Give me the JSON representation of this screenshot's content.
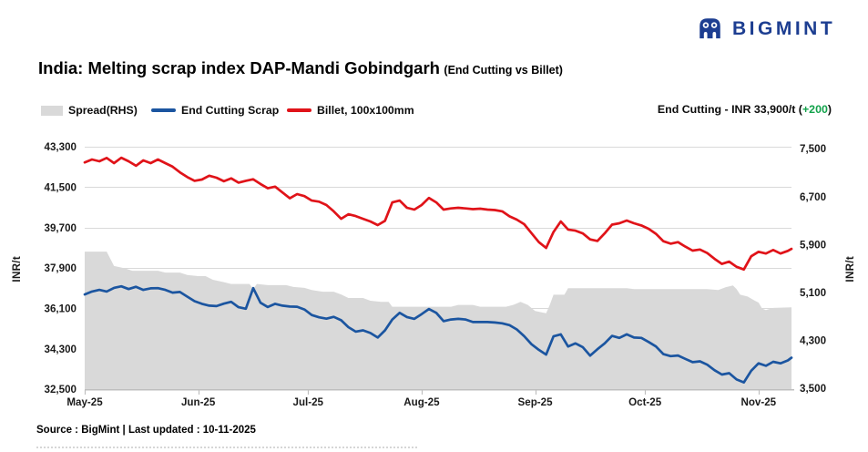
{
  "brand": {
    "name": "BIGMINT",
    "color": "#1d3e91"
  },
  "title": {
    "main": "India: Melting scrap index DAP-Mandi Gobindgarh",
    "sub": "(End Cutting vs Billet)"
  },
  "legend": [
    {
      "label": "Spread(RHS)",
      "swatch": "area",
      "color": "#d9d9d9"
    },
    {
      "label": "End Cutting Scrap",
      "swatch": "line",
      "color": "#1b55a0"
    },
    {
      "label": "Billet, 100x100mm",
      "swatch": "line",
      "color": "#e01319"
    }
  ],
  "callout": {
    "label": "End Cutting - INR 33,900/t ",
    "open": "(",
    "change": "+200",
    "close": ")",
    "change_color": "#12a24b"
  },
  "footer": {
    "source": "Source : BigMint | Last updated : 10-11-2025"
  },
  "chart_data": {
    "type": "line",
    "title": "India: Melting scrap index DAP-Mandi Gobindgarh (End Cutting vs Billet)",
    "ylabel_left": "INR/t",
    "ylabel_right": "INR/t",
    "x_unit": "days since 01-05-2025",
    "grid": "horizontal",
    "legend_position": "top-left",
    "ylim_left": [
      32500,
      43300
    ],
    "ylim_right": [
      3500,
      7500
    ],
    "x_ticks": [
      {
        "label": "May-25",
        "day": 0
      },
      {
        "label": "Jun-25",
        "day": 31
      },
      {
        "label": "Jul-25",
        "day": 61
      },
      {
        "label": "Aug-25",
        "day": 92
      },
      {
        "label": "Sep-25",
        "day": 123
      },
      {
        "label": "Oct-25",
        "day": 153
      },
      {
        "label": "Nov-25",
        "day": 184
      }
    ],
    "y_left_ticks": [
      {
        "label": "43,300",
        "value": 43300
      },
      {
        "label": "41,500",
        "value": 41500
      },
      {
        "label": "39,700",
        "value": 39700
      },
      {
        "label": "37,900",
        "value": 37900
      },
      {
        "label": "36,100",
        "value": 36100
      },
      {
        "label": "34,300",
        "value": 34300
      },
      {
        "label": "32,500",
        "value": 32500
      }
    ],
    "y_right_ticks": [
      {
        "label": "7,500",
        "value": 7500
      },
      {
        "label": "6,700",
        "value": 6700
      },
      {
        "label": "5,900",
        "value": 5900
      },
      {
        "label": "5,100",
        "value": 5100
      },
      {
        "label": "4,300",
        "value": 4300
      },
      {
        "label": "3,500",
        "value": 3500
      }
    ],
    "series": [
      {
        "name": "Spread(RHS)",
        "type": "area",
        "axis": "right",
        "color": "#d9d9d9",
        "points": [
          [
            0,
            5780
          ],
          [
            6,
            5780
          ],
          [
            8,
            5540
          ],
          [
            11,
            5500
          ],
          [
            13,
            5460
          ],
          [
            20,
            5460
          ],
          [
            22,
            5430
          ],
          [
            26,
            5430
          ],
          [
            28,
            5390
          ],
          [
            31,
            5370
          ],
          [
            33,
            5370
          ],
          [
            35,
            5310
          ],
          [
            38,
            5270
          ],
          [
            40,
            5240
          ],
          [
            45,
            5240
          ],
          [
            46,
            5160
          ],
          [
            47,
            5240
          ],
          [
            50,
            5220
          ],
          [
            55,
            5220
          ],
          [
            57,
            5190
          ],
          [
            60,
            5175
          ],
          [
            62,
            5140
          ],
          [
            65,
            5110
          ],
          [
            68,
            5110
          ],
          [
            70,
            5065
          ],
          [
            72,
            5005
          ],
          [
            76,
            5005
          ],
          [
            78,
            4960
          ],
          [
            81,
            4940
          ],
          [
            83,
            4940
          ],
          [
            84,
            4860
          ],
          [
            100,
            4860
          ],
          [
            102,
            4890
          ],
          [
            106,
            4890
          ],
          [
            108,
            4860
          ],
          [
            115,
            4860
          ],
          [
            117,
            4890
          ],
          [
            119,
            4940
          ],
          [
            121,
            4890
          ],
          [
            123,
            4790
          ],
          [
            126,
            4750
          ],
          [
            127,
            4890
          ],
          [
            128,
            5060
          ],
          [
            131,
            5060
          ],
          [
            132,
            5170
          ],
          [
            148,
            5170
          ],
          [
            150,
            5155
          ],
          [
            170,
            5155
          ],
          [
            173,
            5140
          ],
          [
            175,
            5185
          ],
          [
            177,
            5215
          ],
          [
            178,
            5155
          ],
          [
            179,
            5060
          ],
          [
            181,
            5030
          ],
          [
            183,
            4960
          ],
          [
            184,
            4930
          ],
          [
            185,
            4830
          ],
          [
            186,
            4805
          ],
          [
            188,
            4840
          ],
          [
            193,
            4850
          ]
        ]
      },
      {
        "name": "End Cutting Scrap",
        "type": "line",
        "axis": "left",
        "color": "#1b55a0",
        "points": [
          [
            0,
            36720
          ],
          [
            2,
            36850
          ],
          [
            4,
            36920
          ],
          [
            6,
            36850
          ],
          [
            8,
            37010
          ],
          [
            10,
            37080
          ],
          [
            12,
            36960
          ],
          [
            14,
            37060
          ],
          [
            16,
            36920
          ],
          [
            18,
            36990
          ],
          [
            20,
            37000
          ],
          [
            22,
            36920
          ],
          [
            24,
            36800
          ],
          [
            26,
            36830
          ],
          [
            28,
            36620
          ],
          [
            30,
            36420
          ],
          [
            32,
            36300
          ],
          [
            34,
            36220
          ],
          [
            36,
            36200
          ],
          [
            38,
            36310
          ],
          [
            40,
            36390
          ],
          [
            42,
            36150
          ],
          [
            44,
            36080
          ],
          [
            46,
            37000
          ],
          [
            48,
            36350
          ],
          [
            50,
            36160
          ],
          [
            52,
            36300
          ],
          [
            54,
            36220
          ],
          [
            56,
            36180
          ],
          [
            58,
            36170
          ],
          [
            60,
            36050
          ],
          [
            62,
            35800
          ],
          [
            64,
            35700
          ],
          [
            66,
            35640
          ],
          [
            68,
            35720
          ],
          [
            70,
            35570
          ],
          [
            72,
            35260
          ],
          [
            74,
            35060
          ],
          [
            76,
            35120
          ],
          [
            78,
            35000
          ],
          [
            80,
            34800
          ],
          [
            82,
            35120
          ],
          [
            84,
            35600
          ],
          [
            86,
            35900
          ],
          [
            88,
            35710
          ],
          [
            90,
            35630
          ],
          [
            92,
            35840
          ],
          [
            94,
            36070
          ],
          [
            96,
            35900
          ],
          [
            98,
            35530
          ],
          [
            100,
            35600
          ],
          [
            102,
            35630
          ],
          [
            104,
            35600
          ],
          [
            106,
            35490
          ],
          [
            108,
            35490
          ],
          [
            110,
            35490
          ],
          [
            112,
            35470
          ],
          [
            114,
            35430
          ],
          [
            116,
            35350
          ],
          [
            118,
            35160
          ],
          [
            120,
            34860
          ],
          [
            122,
            34500
          ],
          [
            124,
            34250
          ],
          [
            126,
            34040
          ],
          [
            128,
            34850
          ],
          [
            130,
            34940
          ],
          [
            132,
            34400
          ],
          [
            134,
            34540
          ],
          [
            136,
            34370
          ],
          [
            138,
            33990
          ],
          [
            140,
            34280
          ],
          [
            142,
            34540
          ],
          [
            144,
            34870
          ],
          [
            146,
            34780
          ],
          [
            148,
            34940
          ],
          [
            150,
            34800
          ],
          [
            152,
            34780
          ],
          [
            154,
            34600
          ],
          [
            156,
            34400
          ],
          [
            158,
            34060
          ],
          [
            160,
            33970
          ],
          [
            162,
            34000
          ],
          [
            164,
            33850
          ],
          [
            166,
            33700
          ],
          [
            168,
            33740
          ],
          [
            170,
            33590
          ],
          [
            172,
            33340
          ],
          [
            174,
            33150
          ],
          [
            176,
            33210
          ],
          [
            178,
            32930
          ],
          [
            180,
            32800
          ],
          [
            182,
            33320
          ],
          [
            184,
            33650
          ],
          [
            186,
            33540
          ],
          [
            188,
            33720
          ],
          [
            190,
            33650
          ],
          [
            192,
            33780
          ],
          [
            193,
            33900
          ]
        ]
      },
      {
        "name": "Billet, 100x100mm",
        "type": "line",
        "axis": "left",
        "color": "#e01319",
        "points": [
          [
            0,
            42600
          ],
          [
            2,
            42730
          ],
          [
            4,
            42650
          ],
          [
            6,
            42800
          ],
          [
            8,
            42570
          ],
          [
            10,
            42810
          ],
          [
            12,
            42650
          ],
          [
            14,
            42450
          ],
          [
            16,
            42690
          ],
          [
            18,
            42570
          ],
          [
            20,
            42730
          ],
          [
            22,
            42570
          ],
          [
            24,
            42410
          ],
          [
            26,
            42160
          ],
          [
            28,
            41950
          ],
          [
            30,
            41780
          ],
          [
            32,
            41840
          ],
          [
            34,
            42010
          ],
          [
            36,
            41920
          ],
          [
            38,
            41760
          ],
          [
            40,
            41890
          ],
          [
            42,
            41700
          ],
          [
            44,
            41780
          ],
          [
            46,
            41850
          ],
          [
            48,
            41640
          ],
          [
            50,
            41450
          ],
          [
            52,
            41520
          ],
          [
            54,
            41260
          ],
          [
            56,
            41000
          ],
          [
            58,
            41190
          ],
          [
            60,
            41100
          ],
          [
            62,
            40900
          ],
          [
            64,
            40850
          ],
          [
            66,
            40700
          ],
          [
            68,
            40420
          ],
          [
            70,
            40090
          ],
          [
            72,
            40290
          ],
          [
            74,
            40210
          ],
          [
            76,
            40090
          ],
          [
            78,
            39970
          ],
          [
            80,
            39810
          ],
          [
            82,
            40000
          ],
          [
            84,
            40820
          ],
          [
            86,
            40900
          ],
          [
            88,
            40580
          ],
          [
            90,
            40500
          ],
          [
            92,
            40700
          ],
          [
            94,
            41020
          ],
          [
            96,
            40820
          ],
          [
            98,
            40500
          ],
          [
            100,
            40550
          ],
          [
            102,
            40580
          ],
          [
            104,
            40550
          ],
          [
            106,
            40520
          ],
          [
            108,
            40540
          ],
          [
            110,
            40500
          ],
          [
            112,
            40480
          ],
          [
            114,
            40420
          ],
          [
            116,
            40200
          ],
          [
            118,
            40050
          ],
          [
            120,
            39850
          ],
          [
            122,
            39450
          ],
          [
            124,
            39050
          ],
          [
            126,
            38790
          ],
          [
            128,
            39500
          ],
          [
            130,
            39970
          ],
          [
            132,
            39610
          ],
          [
            134,
            39560
          ],
          [
            136,
            39440
          ],
          [
            138,
            39170
          ],
          [
            140,
            39100
          ],
          [
            142,
            39440
          ],
          [
            144,
            39830
          ],
          [
            146,
            39890
          ],
          [
            148,
            40010
          ],
          [
            150,
            39890
          ],
          [
            152,
            39790
          ],
          [
            154,
            39640
          ],
          [
            156,
            39420
          ],
          [
            158,
            39090
          ],
          [
            160,
            38980
          ],
          [
            162,
            39050
          ],
          [
            164,
            38850
          ],
          [
            166,
            38670
          ],
          [
            168,
            38720
          ],
          [
            170,
            38560
          ],
          [
            172,
            38300
          ],
          [
            174,
            38080
          ],
          [
            176,
            38180
          ],
          [
            178,
            37950
          ],
          [
            180,
            37830
          ],
          [
            182,
            38420
          ],
          [
            184,
            38620
          ],
          [
            186,
            38540
          ],
          [
            188,
            38700
          ],
          [
            190,
            38540
          ],
          [
            192,
            38660
          ],
          [
            193,
            38750
          ]
        ]
      }
    ]
  }
}
